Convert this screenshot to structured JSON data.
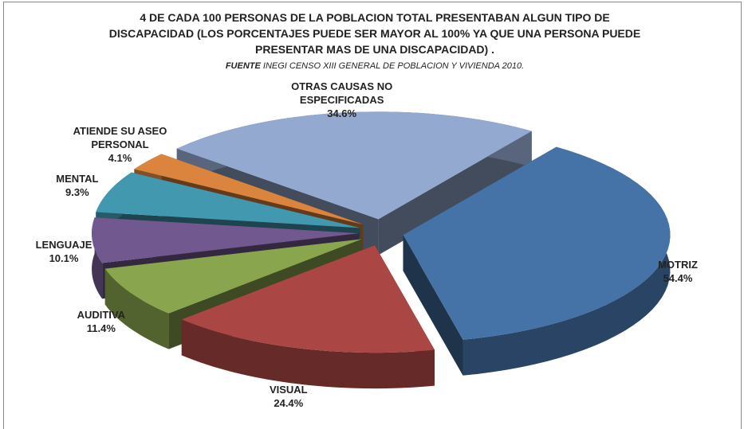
{
  "chart_data": {
    "type": "pie",
    "title": "4 DE CADA 100 PERSONAS DE LA POBLACION TOTAL PRESENTABAN ALGUN TIPO DE DISCAPACIDAD  (LOS PORCENTAJES PUEDE SER MAYOR AL 100% YA QUE UNA PERSONA PUEDE PRESENTAR MAS DE UNA DISCAPACIDAD) .",
    "source_label": "FUENTE",
    "source": "INEGI CENSO XIII  GENERAL DE POBLACION Y VIVIENDA 2010.",
    "categories": [
      "MOTRIZ",
      "VISUAL",
      "AUDITIVA",
      "LENGUAJE",
      "MENTAL",
      "ATIENDE SU ASEO PERSONAL",
      "OTRAS CAUSAS NO ESPECIFICADAS"
    ],
    "values": [
      54.4,
      24.4,
      11.4,
      10.1,
      9.3,
      4.1,
      34.6
    ],
    "value_labels": [
      "54.4%",
      "24.4%",
      "11.4%",
      "10.1%",
      "9.3%",
      "4.1%",
      "34.6%"
    ],
    "colors": [
      "#4572a7",
      "#aa4643",
      "#89a54e",
      "#71588f",
      "#4198af",
      "#db843d",
      "#93a9cf"
    ]
  }
}
